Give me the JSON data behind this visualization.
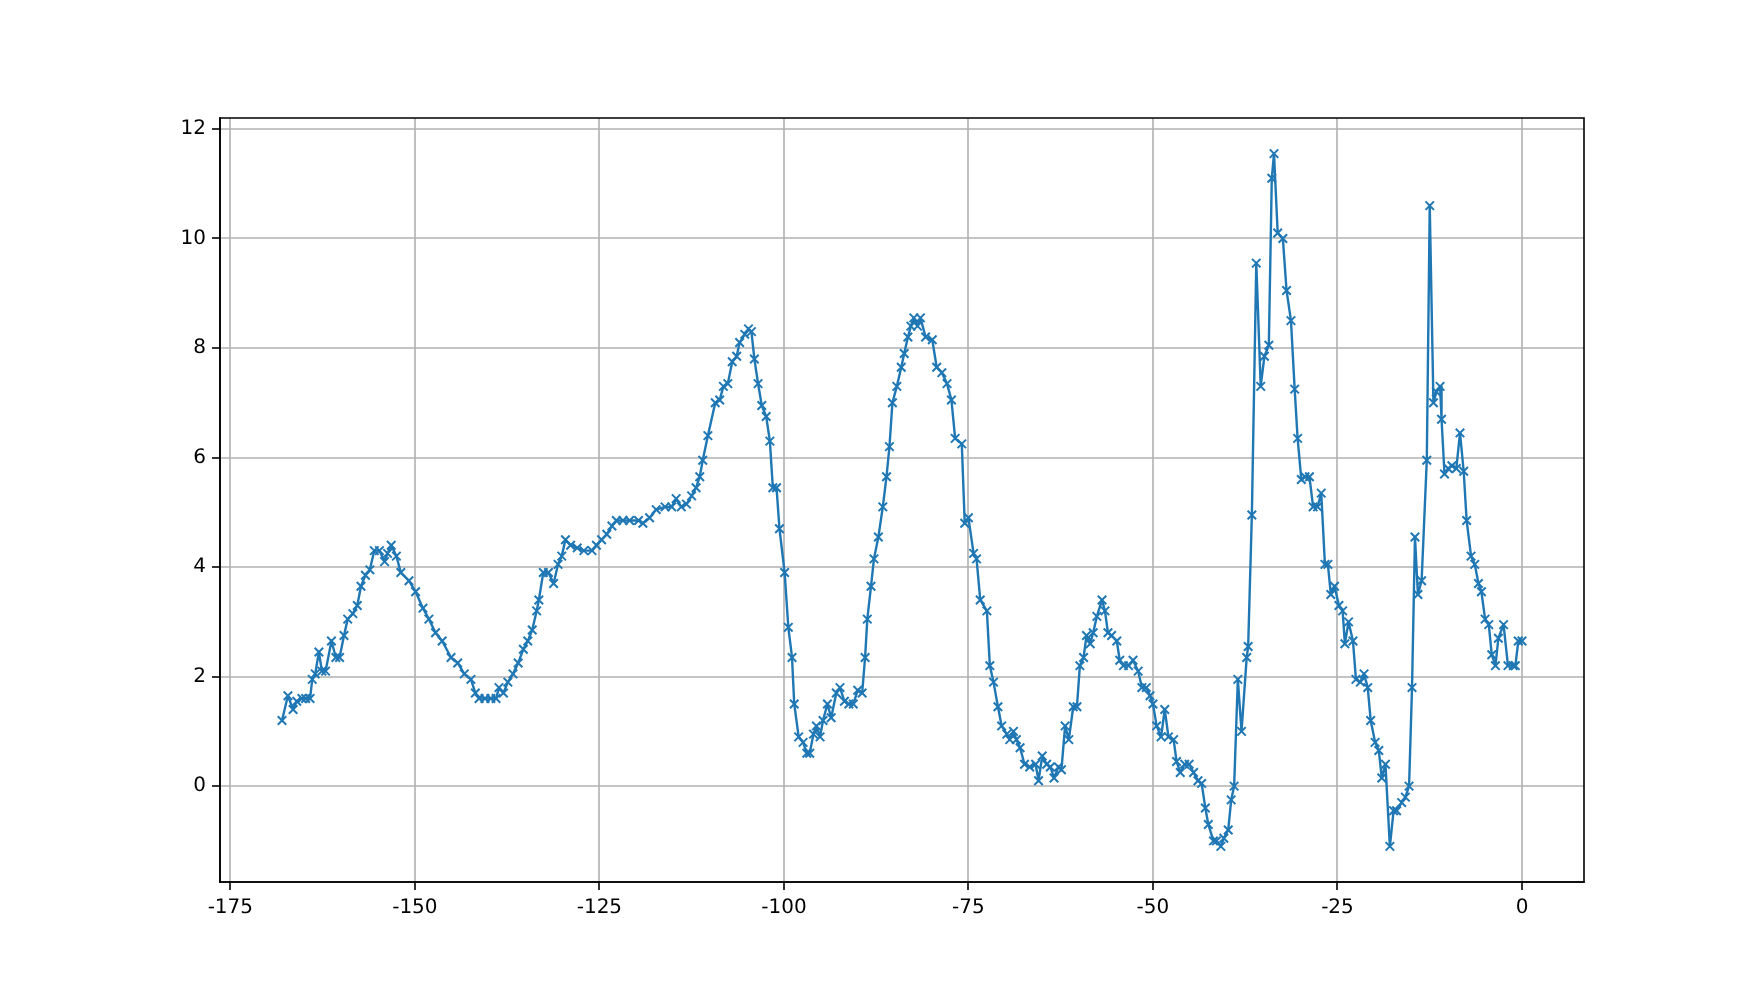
{
  "chart_data": {
    "type": "line",
    "color": "#1f77b4",
    "marker": "cross",
    "grid": true,
    "xlim": [
      -176.4,
      8.4
    ],
    "ylim": [
      -1.75,
      12.2
    ],
    "xticks": [
      -175,
      -150,
      -125,
      -100,
      -75,
      -50,
      -25,
      0
    ],
    "yticks": [
      0,
      2,
      4,
      6,
      8,
      10,
      12
    ],
    "x": [
      -168.0,
      -167.2,
      -166.5,
      -166.0,
      -165.3,
      -164.8,
      -164.2,
      -163.9,
      -163.5,
      -163.0,
      -162.6,
      -162.1,
      -161.3,
      -160.7,
      -160.2,
      -159.6,
      -159.1,
      -158.4,
      -157.8,
      -157.3,
      -156.7,
      -156.1,
      -155.5,
      -154.8,
      -154.1,
      -153.7,
      -153.2,
      -152.5,
      -151.9,
      -150.8,
      -149.9,
      -148.9,
      -148.1,
      -147.2,
      -146.3,
      -145.1,
      -144.2,
      -143.3,
      -142.4,
      -141.8,
      -141.3,
      -140.5,
      -139.7,
      -139.0,
      -138.6,
      -138.0,
      -137.4,
      -136.7,
      -136.0,
      -135.3,
      -134.7,
      -134.1,
      -133.5,
      -133.2,
      -132.6,
      -131.9,
      -131.2,
      -130.6,
      -130.1,
      -129.6,
      -128.9,
      -128.0,
      -127.1,
      -126.0,
      -125.4,
      -124.7,
      -124.0,
      -123.3,
      -122.7,
      -121.8,
      -120.9,
      -119.7,
      -119.1,
      -118.2,
      -117.3,
      -116.1,
      -115.2,
      -114.6,
      -113.9,
      -113.2,
      -112.5,
      -111.9,
      -111.4,
      -111.0,
      -110.3,
      -109.3,
      -108.7,
      -108.2,
      -107.6,
      -107.0,
      -106.4,
      -106.0,
      -105.3,
      -104.8,
      -104.4,
      -104.0,
      -103.5,
      -103.0,
      -102.4,
      -101.9,
      -101.5,
      -101.0,
      -100.6,
      -99.9,
      -99.4,
      -98.9,
      -98.6,
      -98.0,
      -97.4,
      -96.9,
      -96.5,
      -96.0,
      -95.6,
      -95.1,
      -94.7,
      -94.1,
      -93.6,
      -92.9,
      -92.4,
      -91.8,
      -91.2,
      -90.6,
      -90.0,
      -89.4,
      -89.0,
      -88.7,
      -88.2,
      -87.8,
      -87.2,
      -86.6,
      -86.1,
      -85.7,
      -85.3,
      -84.7,
      -84.1,
      -83.7,
      -83.2,
      -82.8,
      -82.4,
      -81.9,
      -81.5,
      -80.8,
      -79.9,
      -79.3,
      -78.6,
      -77.9,
      -77.3,
      -76.8,
      -75.9,
      -75.5,
      -75.0,
      -74.3,
      -73.9,
      -73.4,
      -72.5,
      -72.1,
      -71.6,
      -71.0,
      -70.5,
      -69.8,
      -69.4,
      -68.9,
      -68.5,
      -68.0,
      -67.4,
      -66.7,
      -65.9,
      -65.5,
      -65.0,
      -64.4,
      -63.9,
      -63.4,
      -62.8,
      -62.4,
      -61.9,
      -61.4,
      -60.8,
      -60.3,
      -59.9,
      -59.4,
      -59.0,
      -58.5,
      -58.1,
      -57.6,
      -56.9,
      -56.5,
      -56.1,
      -55.6,
      -54.9,
      -54.5,
      -54.0,
      -53.3,
      -52.7,
      -52.0,
      -51.5,
      -50.9,
      -50.4,
      -50.0,
      -49.5,
      -48.9,
      -48.4,
      -47.9,
      -47.2,
      -46.8,
      -46.3,
      -45.7,
      -45.1,
      -44.5,
      -43.9,
      -43.4,
      -42.9,
      -42.5,
      -41.8,
      -41.4,
      -40.8,
      -40.4,
      -39.8,
      -39.4,
      -39.0,
      -38.5,
      -38.0,
      -37.3,
      -37.1,
      -36.6,
      -36.0,
      -35.4,
      -34.9,
      -34.3,
      -33.9,
      -33.6,
      -33.1,
      -32.4,
      -31.9,
      -31.3,
      -30.8,
      -30.4,
      -29.9,
      -29.4,
      -28.8,
      -28.3,
      -27.7,
      -27.2,
      -26.7,
      -26.3,
      -25.9,
      -25.4,
      -24.8,
      -24.3,
      -24.0,
      -23.5,
      -22.9,
      -22.5,
      -21.9,
      -21.4,
      -20.9,
      -20.5,
      -19.9,
      -19.4,
      -19.0,
      -18.5,
      -17.9,
      -17.4,
      -17.0,
      -16.3,
      -15.8,
      -15.3,
      -14.9,
      -14.5,
      -14.1,
      -13.6,
      -12.9,
      -12.5,
      -12.0,
      -11.6,
      -11.1,
      -10.9,
      -10.5,
      -10.0,
      -9.5,
      -8.9,
      -8.4,
      -7.9,
      -7.5,
      -6.9,
      -6.4,
      -5.9,
      -5.5,
      -5.0,
      -4.5,
      -4.1,
      -3.6,
      -3.2,
      -2.5,
      -1.9,
      -1.2,
      -0.9,
      -0.5,
      0.0
    ],
    "values": [
      1.2,
      1.65,
      1.4,
      1.55,
      1.6,
      1.6,
      1.6,
      1.95,
      2.05,
      2.45,
      2.1,
      2.1,
      2.65,
      2.35,
      2.35,
      2.75,
      3.05,
      3.15,
      3.3,
      3.65,
      3.85,
      3.95,
      4.3,
      4.3,
      4.1,
      4.25,
      4.4,
      4.2,
      3.9,
      3.75,
      3.55,
      3.25,
      3.05,
      2.8,
      2.65,
      2.35,
      2.25,
      2.05,
      1.95,
      1.7,
      1.6,
      1.6,
      1.6,
      1.6,
      1.8,
      1.7,
      1.9,
      2.05,
      2.25,
      2.5,
      2.65,
      2.85,
      3.2,
      3.4,
      3.9,
      3.9,
      3.7,
      4.05,
      4.2,
      4.5,
      4.4,
      4.35,
      4.3,
      4.3,
      4.4,
      4.5,
      4.6,
      4.75,
      4.85,
      4.85,
      4.85,
      4.85,
      4.8,
      4.9,
      5.05,
      5.1,
      5.1,
      5.25,
      5.1,
      5.15,
      5.3,
      5.45,
      5.65,
      5.95,
      6.4,
      7.0,
      7.05,
      7.3,
      7.35,
      7.75,
      7.85,
      8.1,
      8.25,
      8.35,
      8.3,
      7.8,
      7.35,
      6.95,
      6.75,
      6.3,
      5.45,
      5.45,
      4.7,
      3.9,
      2.9,
      2.35,
      1.5,
      0.9,
      0.8,
      0.6,
      0.6,
      0.95,
      1.1,
      0.9,
      1.2,
      1.5,
      1.25,
      1.7,
      1.8,
      1.55,
      1.5,
      1.5,
      1.75,
      1.7,
      2.35,
      3.05,
      3.65,
      4.15,
      4.55,
      5.1,
      5.65,
      6.2,
      7.0,
      7.3,
      7.65,
      7.9,
      8.2,
      8.4,
      8.55,
      8.4,
      8.55,
      8.2,
      8.15,
      7.65,
      7.55,
      7.35,
      7.05,
      6.35,
      6.25,
      4.8,
      4.9,
      4.25,
      4.15,
      3.4,
      3.2,
      2.2,
      1.9,
      1.45,
      1.1,
      0.95,
      0.85,
      1.0,
      0.85,
      0.7,
      0.4,
      0.35,
      0.4,
      0.1,
      0.55,
      0.4,
      0.35,
      0.15,
      0.35,
      0.3,
      1.1,
      0.85,
      1.45,
      1.45,
      2.2,
      2.35,
      2.75,
      2.6,
      2.8,
      3.1,
      3.4,
      3.2,
      2.8,
      2.75,
      2.65,
      2.3,
      2.2,
      2.2,
      2.3,
      2.1,
      1.8,
      1.8,
      1.65,
      1.5,
      1.1,
      0.9,
      1.4,
      0.9,
      0.85,
      0.45,
      0.25,
      0.4,
      0.4,
      0.25,
      0.1,
      0.05,
      -0.4,
      -0.7,
      -1.0,
      -1.0,
      -1.1,
      -0.95,
      -0.8,
      -0.25,
      0.0,
      1.95,
      1.0,
      2.35,
      2.55,
      4.95,
      9.55,
      7.3,
      7.85,
      8.05,
      11.1,
      11.55,
      10.1,
      10.0,
      9.05,
      8.5,
      7.25,
      6.35,
      5.6,
      5.65,
      5.65,
      5.1,
      5.1,
      5.35,
      4.05,
      4.05,
      3.5,
      3.65,
      3.3,
      3.2,
      2.6,
      3.0,
      2.65,
      1.95,
      1.9,
      2.05,
      1.8,
      1.2,
      0.8,
      0.65,
      0.15,
      0.4,
      -1.1,
      -0.45,
      -0.45,
      -0.3,
      -0.2,
      0.0,
      1.8,
      4.55,
      3.5,
      3.75,
      5.95,
      10.6,
      7.0,
      7.2,
      7.3,
      6.7,
      5.7,
      5.8,
      5.85,
      5.8,
      6.45,
      5.75,
      4.85,
      4.2,
      4.05,
      3.7,
      3.55,
      3.05,
      2.95,
      2.4,
      2.2,
      2.7,
      2.95,
      2.2,
      2.2,
      2.2,
      2.65,
      2.65
    ]
  }
}
